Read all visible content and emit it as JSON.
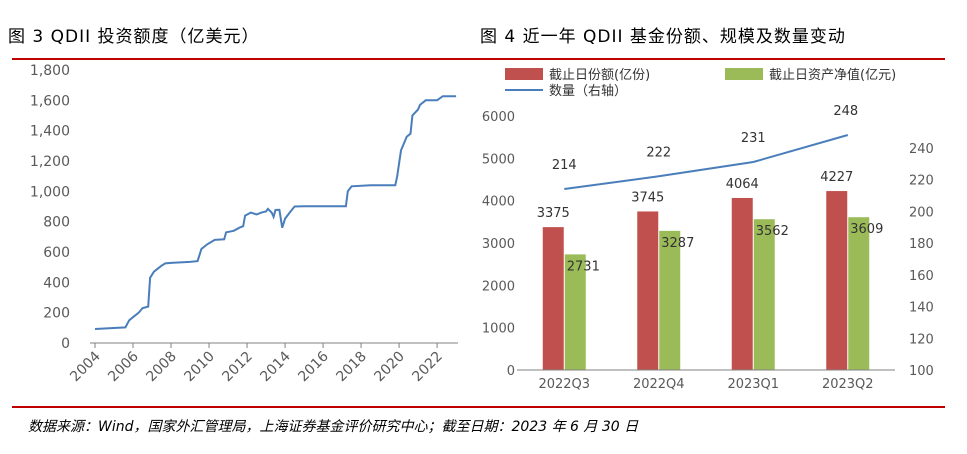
{
  "left_title": "图 3 QDII 投资额度（亿美元）",
  "right_title": "图 4 近一年 QDII 基金份额、规模及数量变动",
  "source_note": "数据来源：Wind，国家外汇管理局，上海证券基金评价研究中心；截至日期：2023 年 6 月 30 日",
  "colors": {
    "line_blue": "#4a7ebb",
    "bar_red": "#c0504d",
    "bar_green": "#9bbb59",
    "rule_red": "#c00000"
  },
  "chart_data": [
    {
      "type": "line",
      "title": "QDII 投资额度（亿美元）",
      "xlabel": "",
      "ylabel": "",
      "ylim": [
        0,
        1800
      ],
      "xlim": [
        2004,
        2023.1
      ],
      "yticks": [
        "0",
        "200",
        "400",
        "600",
        "800",
        "1,000",
        "1,200",
        "1,400",
        "1,600",
        "1,800"
      ],
      "xticks": [
        "2004",
        "2006",
        "2008",
        "2010",
        "2012",
        "2014",
        "2016",
        "2018",
        "2020",
        "2022"
      ],
      "grid": false,
      "series": [
        {
          "values": [
            [
              2004.0,
              92
            ],
            [
              2005.6,
              103
            ],
            [
              2005.8,
              150
            ],
            [
              2006.0,
              170
            ],
            [
              2006.3,
              200
            ],
            [
              2006.5,
              230
            ],
            [
              2006.8,
              240
            ],
            [
              2006.9,
              430
            ],
            [
              2007.1,
              470
            ],
            [
              2007.5,
              510
            ],
            [
              2007.7,
              525
            ],
            [
              2008.0,
              528
            ],
            [
              2009.0,
              535
            ],
            [
              2009.4,
              540
            ],
            [
              2009.6,
              620
            ],
            [
              2009.9,
              650
            ],
            [
              2010.3,
              680
            ],
            [
              2010.8,
              684
            ],
            [
              2010.9,
              730
            ],
            [
              2011.3,
              740
            ],
            [
              2011.6,
              760
            ],
            [
              2011.8,
              770
            ],
            [
              2011.9,
              840
            ],
            [
              2012.2,
              860
            ],
            [
              2012.5,
              848
            ],
            [
              2012.8,
              862
            ],
            [
              2013.0,
              867
            ],
            [
              2013.1,
              884
            ],
            [
              2013.3,
              860
            ],
            [
              2013.4,
              832
            ],
            [
              2013.5,
              877
            ],
            [
              2013.7,
              878
            ],
            [
              2013.85,
              760
            ],
            [
              2014.0,
              820
            ],
            [
              2014.3,
              870
            ],
            [
              2014.5,
              900
            ],
            [
              2015.0,
              902
            ],
            [
              2016.0,
              902
            ],
            [
              2017.2,
              902
            ],
            [
              2017.3,
              1000
            ],
            [
              2017.5,
              1033
            ],
            [
              2018.5,
              1040
            ],
            [
              2019.5,
              1040
            ],
            [
              2019.8,
              1040
            ],
            [
              2019.9,
              1100
            ],
            [
              2020.1,
              1270
            ],
            [
              2020.4,
              1360
            ],
            [
              2020.6,
              1380
            ],
            [
              2020.7,
              1500
            ],
            [
              2021.0,
              1540
            ],
            [
              2021.1,
              1570
            ],
            [
              2021.4,
              1600
            ],
            [
              2022.0,
              1600
            ],
            [
              2022.3,
              1627
            ],
            [
              2023.0,
              1627
            ]
          ]
        }
      ]
    },
    {
      "type": "bar",
      "title": "近一年 QDII 基金份额、规模及数量变动",
      "categories": [
        "2022Q3",
        "2022Q4",
        "2023Q1",
        "2023Q2"
      ],
      "ylim": [
        0,
        6000
      ],
      "y2lim": [
        100,
        260
      ],
      "yticks": [
        "0",
        "1000",
        "2000",
        "3000",
        "4000",
        "5000",
        "6000"
      ],
      "y2ticks": [
        "100",
        "120",
        "140",
        "160",
        "180",
        "200",
        "220",
        "240"
      ],
      "legend_position": "top",
      "grid": false,
      "series": [
        {
          "name": "截止日份额(亿份)",
          "kind": "bar",
          "values": [
            3375,
            3745,
            4064,
            4227
          ]
        },
        {
          "name": "截止日资产净值(亿元)",
          "kind": "bar",
          "values": [
            2731,
            3287,
            3562,
            3609
          ]
        },
        {
          "name": "数量（右轴）",
          "kind": "line",
          "axis": "right",
          "values": [
            214,
            222,
            231,
            248
          ]
        }
      ]
    }
  ]
}
